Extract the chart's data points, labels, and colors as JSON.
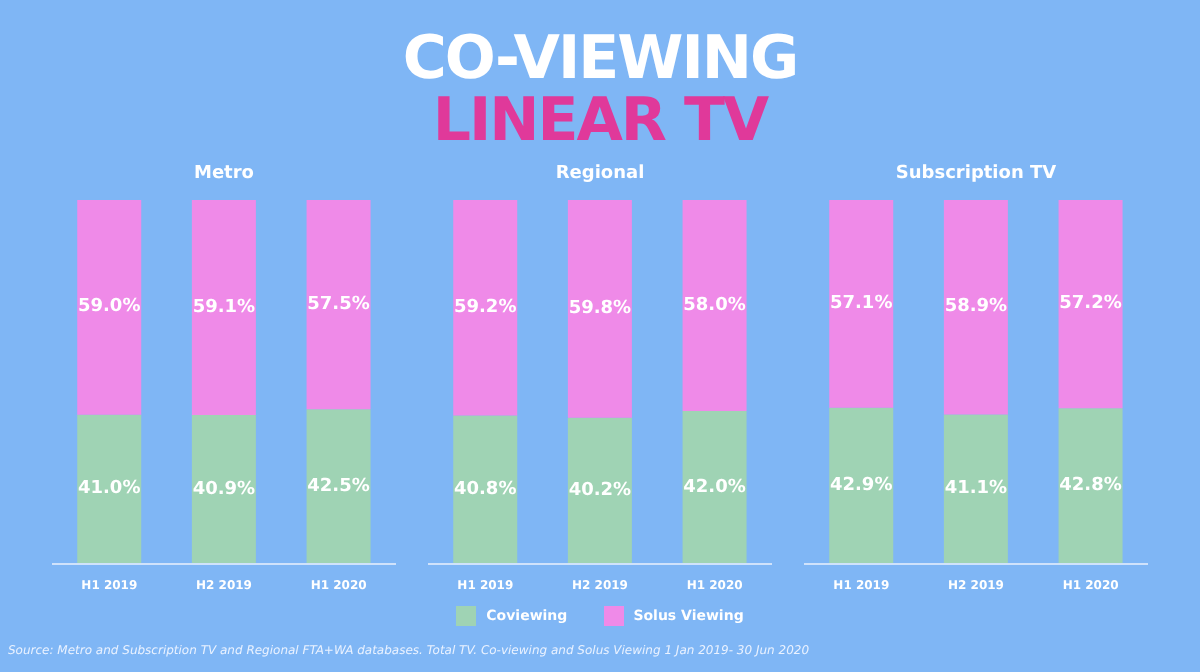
{
  "chart_data": [
    {
      "type": "other",
      "title": "CO-VIEWING",
      "subtitle": "LINEAR TV",
      "annotations": [
        "Source: Metro and Subscription TV and Regional FTA+WA databases. Total TV. Co-viewing and Solus Viewing 1 Jan 2019- 30 Jun 2020"
      ]
    },
    {
      "type": "bar",
      "title": "Metro",
      "stacked": true,
      "tick_labels": "x",
      "categories": [
        "H1 2019",
        "H2 2019",
        "H1 2020"
      ],
      "series": [
        {
          "color": "#9fd3b4",
          "values": [
            41.0,
            40.9,
            42.5
          ],
          "value_labels": [
            "41.0%",
            "40.9%",
            "42.5%"
          ]
        },
        {
          "color": "#ef8ae8",
          "values": [
            59.0,
            59.1,
            57.5
          ],
          "value_labels": [
            "59.0%",
            "59.1%",
            "57.5%"
          ]
        }
      ]
    },
    {
      "type": "bar",
      "title": "Regional",
      "stacked": true,
      "tick_labels": "x",
      "legend": "bottom",
      "categories": [
        "H1 2019",
        "H2 2019",
        "H1 2020"
      ],
      "series": [
        {
          "name": "Coviewing",
          "color": "#9fd3b4",
          "values": [
            40.8,
            40.2,
            42.0
          ],
          "value_labels": [
            "40.8%",
            "40.2%",
            "42.0%"
          ]
        },
        {
          "name": "Solus Viewing",
          "color": "#ef8ae8",
          "values": [
            59.2,
            59.8,
            58.0
          ],
          "value_labels": [
            "59.2%",
            "59.8%",
            "58.0%"
          ]
        }
      ]
    },
    {
      "type": "bar",
      "title": "Subscription TV",
      "stacked": true,
      "tick_labels": "x",
      "categories": [
        "H1 2019",
        "H2 2019",
        "H1 2020"
      ],
      "series": [
        {
          "color": "#9fd3b4",
          "values": [
            42.9,
            41.1,
            42.8
          ],
          "value_labels": [
            "42.9%",
            "41.1%",
            "42.8%"
          ]
        },
        {
          "color": "#ef8ae8",
          "values": [
            57.1,
            58.9,
            57.2
          ],
          "value_labels": [
            "57.1%",
            "58.9%",
            "57.2%"
          ]
        }
      ]
    }
  ]
}
